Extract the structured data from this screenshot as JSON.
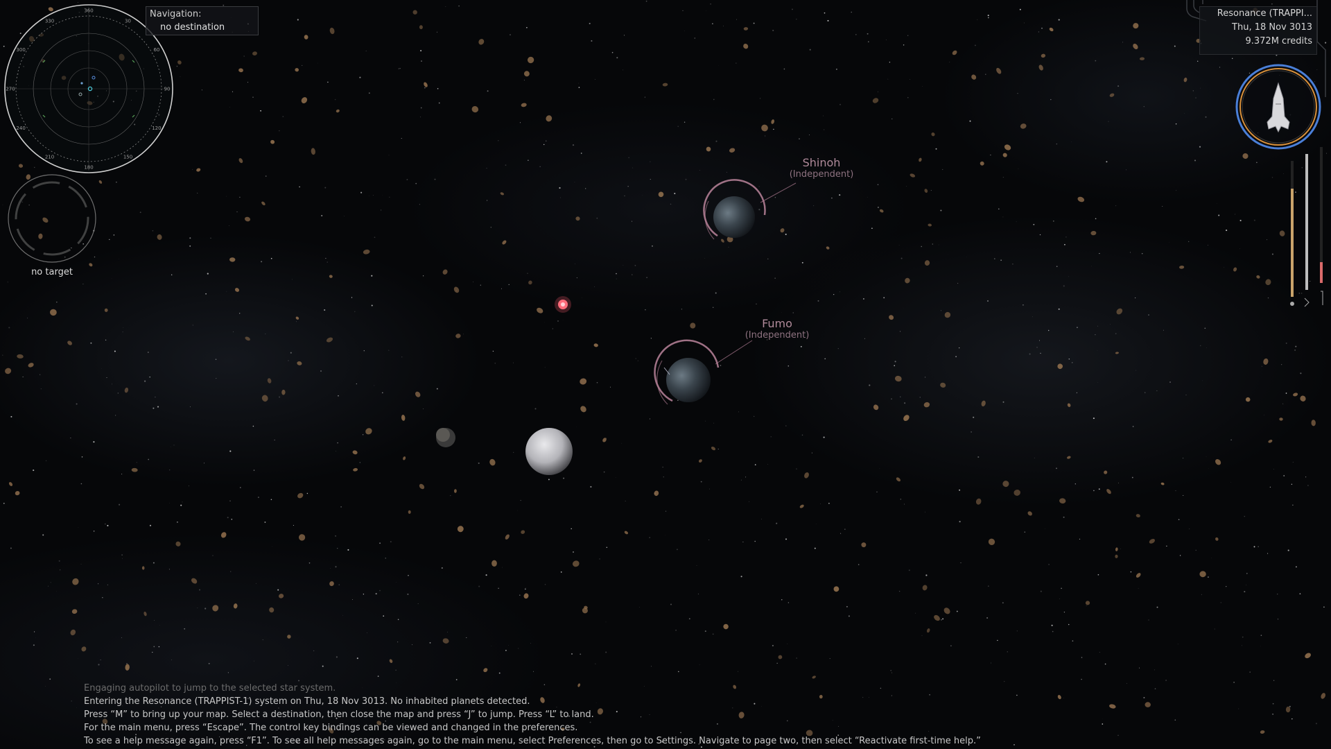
{
  "navigation": {
    "title": "Navigation:",
    "destination": "no destination"
  },
  "status": {
    "system": "Resonance (TRAPPI...",
    "date": "Thu, 18 Nov 3013",
    "credits": "9.372M credits"
  },
  "target": {
    "label": "no target"
  },
  "radar": {
    "ring_labels": [
      "360",
      "30",
      "60",
      "90",
      "120",
      "150",
      "180",
      "210",
      "240",
      "270",
      "300",
      "330"
    ]
  },
  "planets": [
    {
      "name": "Shinoh",
      "government": "(Independent)"
    },
    {
      "name": "Fumo",
      "government": "(Independent)"
    }
  ],
  "messages": [
    "Engaging autopilot to jump to the selected star system.",
    "Entering the Resonance (TRAPPIST-1) system on Thu, 18 Nov 3013. No inhabited planets detected.",
    "Press “M” to bring up your map. Select a destination, then close the map and press “J” to jump. Press “L” to land.",
    "For the main menu, press “Escape”. The control key bindings can be viewed and changed in the preferences.",
    "To see a help message again, press “F1”. To see all help messages again, go to the main menu, select Preferences, then go to Settings. Navigate to page two, then select “Reactivate first-time help.”"
  ],
  "colors": {
    "planet_ring": "#b07d93",
    "ship_shield": "#4a7fd8",
    "ship_hull": "#d8903a",
    "radar_ring": "#cfcfcf",
    "asteroid": "#8a6a4a"
  },
  "icons": {
    "ship": "ship-silhouette-icon",
    "radar": "radar-icon",
    "target": "target-reticle-icon"
  }
}
